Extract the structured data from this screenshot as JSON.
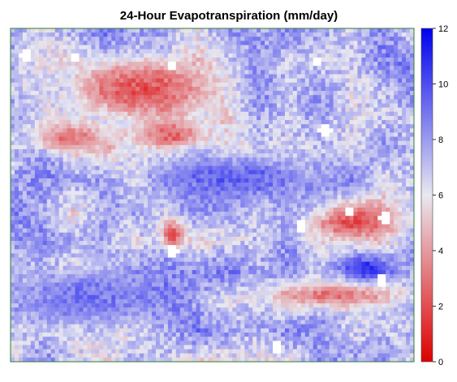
{
  "chart_data": {
    "type": "heatmap",
    "title": "24-Hour Evapotranspiration (mm/day)",
    "xlabel": "",
    "ylabel": "",
    "colorbar": {
      "range": [
        0,
        12
      ],
      "ticks": [
        0,
        2,
        4,
        6,
        8,
        10,
        12
      ],
      "tick_labels": [
        "0",
        "2",
        "4",
        "6",
        "8",
        "10",
        "12"
      ],
      "colors": [
        "#dd0000",
        "#e8e8f0",
        "#0000ee"
      ],
      "position": "right"
    },
    "raster": {
      "rows": 80,
      "cols": 100,
      "value_range": [
        0,
        12
      ],
      "background_mean": 7.2,
      "no_data_color": "#ffffff",
      "features": [
        {
          "kind": "low_et_region",
          "label": "upper-left red patches",
          "cx": 0.33,
          "cy": 0.18,
          "rx": 0.22,
          "ry": 0.12,
          "value": 2.2
        },
        {
          "kind": "low_et_region",
          "label": "left-central red band",
          "cx": 0.15,
          "cy": 0.33,
          "rx": 0.12,
          "ry": 0.06,
          "value": 3.0
        },
        {
          "kind": "low_et_region",
          "label": "central red streak",
          "cx": 0.4,
          "cy": 0.32,
          "rx": 0.1,
          "ry": 0.05,
          "value": 2.5
        },
        {
          "kind": "low_et_region",
          "label": "right-middle red cluster",
          "cx": 0.85,
          "cy": 0.58,
          "rx": 0.14,
          "ry": 0.08,
          "value": 2.0
        },
        {
          "kind": "low_et_region",
          "label": "lower-right red band",
          "cx": 0.8,
          "cy": 0.8,
          "rx": 0.2,
          "ry": 0.05,
          "value": 3.0
        },
        {
          "kind": "low_et_region",
          "label": "center red spot",
          "cx": 0.4,
          "cy": 0.62,
          "rx": 0.04,
          "ry": 0.06,
          "value": 1.8
        },
        {
          "kind": "high_et_region",
          "label": "right-lower blue area",
          "cx": 0.88,
          "cy": 0.72,
          "rx": 0.1,
          "ry": 0.05,
          "value": 11.0
        },
        {
          "kind": "high_et_region",
          "label": "mid blue diagonal band",
          "cx": 0.55,
          "cy": 0.45,
          "rx": 0.25,
          "ry": 0.08,
          "value": 9.5
        },
        {
          "kind": "high_et_region",
          "label": "lower-left blue region",
          "cx": 0.2,
          "cy": 0.8,
          "rx": 0.18,
          "ry": 0.1,
          "value": 9.0
        },
        {
          "kind": "no_data",
          "label": "bright white patches",
          "points": [
            [
              0.16,
              0.09
            ],
            [
              0.04,
              0.08
            ],
            [
              0.4,
              0.11
            ],
            [
              0.76,
              0.1
            ],
            [
              0.4,
              0.67
            ],
            [
              0.78,
              0.31
            ],
            [
              0.93,
              0.57
            ],
            [
              0.72,
              0.59
            ],
            [
              0.66,
              0.96
            ],
            [
              0.92,
              0.76
            ],
            [
              0.84,
              0.55
            ]
          ]
        }
      ]
    }
  }
}
